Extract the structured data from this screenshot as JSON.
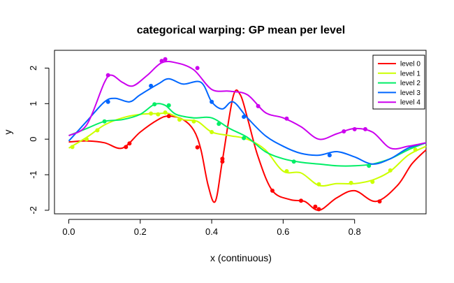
{
  "chart_data": {
    "type": "line",
    "title": "categorical warping: GP mean per level",
    "xlabel": "x (continuous)",
    "ylabel": "y",
    "xlim": [
      -0.04,
      1.0
    ],
    "ylim": [
      -2.1,
      2.5
    ],
    "x_ticks": [
      0.0,
      0.2,
      0.4,
      0.6,
      0.8
    ],
    "x_tick_labels": [
      "0.0",
      "0.2",
      "0.4",
      "0.6",
      "0.8"
    ],
    "y_ticks": [
      -2,
      -1,
      0,
      1,
      2
    ],
    "y_tick_labels": [
      "-2",
      "-1",
      "0",
      "1",
      "2"
    ],
    "grid": false,
    "legend_position": "top-right",
    "series": [
      {
        "name": "level 0",
        "color": "#ff0000",
        "curve": [
          [
            0.0,
            -0.08
          ],
          [
            0.05,
            -0.05
          ],
          [
            0.1,
            -0.1
          ],
          [
            0.15,
            -0.25
          ],
          [
            0.2,
            0.2
          ],
          [
            0.25,
            0.55
          ],
          [
            0.28,
            0.65
          ],
          [
            0.32,
            0.55
          ],
          [
            0.35,
            0.25
          ],
          [
            0.37,
            -0.3
          ],
          [
            0.39,
            -1.3
          ],
          [
            0.41,
            -1.75
          ],
          [
            0.43,
            -0.6
          ],
          [
            0.46,
            1.2
          ],
          [
            0.48,
            1.25
          ],
          [
            0.5,
            0.6
          ],
          [
            0.53,
            -0.5
          ],
          [
            0.57,
            -1.45
          ],
          [
            0.62,
            -1.7
          ],
          [
            0.66,
            -1.75
          ],
          [
            0.7,
            -2.0
          ],
          [
            0.75,
            -1.65
          ],
          [
            0.8,
            -1.45
          ],
          [
            0.86,
            -1.75
          ],
          [
            0.92,
            -1.3
          ],
          [
            0.96,
            -0.7
          ],
          [
            1.0,
            -0.3
          ]
        ],
        "points": [
          [
            0.16,
            -0.22
          ],
          [
            0.17,
            -0.12
          ],
          [
            0.28,
            0.65
          ],
          [
            0.36,
            -0.23
          ],
          [
            0.43,
            -0.55
          ],
          [
            0.43,
            -0.63
          ],
          [
            0.57,
            -1.45
          ],
          [
            0.65,
            -1.73
          ],
          [
            0.69,
            -1.9
          ],
          [
            0.7,
            -1.97
          ],
          [
            0.87,
            -1.75
          ]
        ]
      },
      {
        "name": "level 1",
        "color": "#ccff00",
        "curve": [
          [
            0.0,
            -0.25
          ],
          [
            0.05,
            0.05
          ],
          [
            0.1,
            0.4
          ],
          [
            0.15,
            0.6
          ],
          [
            0.2,
            0.7
          ],
          [
            0.25,
            0.72
          ],
          [
            0.28,
            0.72
          ],
          [
            0.32,
            0.55
          ],
          [
            0.36,
            0.5
          ],
          [
            0.4,
            0.2
          ],
          [
            0.45,
            0.1
          ],
          [
            0.5,
            0.0
          ],
          [
            0.55,
            -0.3
          ],
          [
            0.6,
            -0.9
          ],
          [
            0.65,
            -0.95
          ],
          [
            0.7,
            -1.3
          ],
          [
            0.75,
            -1.25
          ],
          [
            0.8,
            -1.25
          ],
          [
            0.85,
            -1.15
          ],
          [
            0.9,
            -0.9
          ],
          [
            0.95,
            -0.45
          ],
          [
            1.0,
            -0.2
          ]
        ],
        "points": [
          [
            0.01,
            -0.22
          ],
          [
            0.05,
            0.0
          ],
          [
            0.08,
            0.25
          ],
          [
            0.23,
            0.72
          ],
          [
            0.25,
            0.7
          ],
          [
            0.27,
            0.75
          ],
          [
            0.31,
            0.55
          ],
          [
            0.35,
            0.5
          ],
          [
            0.4,
            0.2
          ],
          [
            0.61,
            -0.9
          ],
          [
            0.7,
            -1.27
          ],
          [
            0.79,
            -1.23
          ],
          [
            0.85,
            -1.2
          ],
          [
            0.9,
            -0.88
          ],
          [
            0.97,
            -0.3
          ]
        ]
      },
      {
        "name": "level 2",
        "color": "#00ee66",
        "curve": [
          [
            0.0,
            0.1
          ],
          [
            0.05,
            0.3
          ],
          [
            0.1,
            0.5
          ],
          [
            0.15,
            0.55
          ],
          [
            0.2,
            0.7
          ],
          [
            0.24,
            0.98
          ],
          [
            0.27,
            0.95
          ],
          [
            0.3,
            0.7
          ],
          [
            0.35,
            0.6
          ],
          [
            0.4,
            0.6
          ],
          [
            0.45,
            0.3
          ],
          [
            0.5,
            0.05
          ],
          [
            0.55,
            -0.35
          ],
          [
            0.6,
            -0.55
          ],
          [
            0.65,
            -0.65
          ],
          [
            0.7,
            -0.7
          ],
          [
            0.75,
            -0.75
          ],
          [
            0.8,
            -0.75
          ],
          [
            0.85,
            -0.7
          ],
          [
            0.9,
            -0.55
          ],
          [
            0.95,
            -0.3
          ],
          [
            1.0,
            -0.1
          ]
        ],
        "points": [
          [
            0.1,
            0.5
          ],
          [
            0.24,
            0.98
          ],
          [
            0.28,
            0.95
          ],
          [
            0.42,
            0.43
          ],
          [
            0.49,
            0.03
          ],
          [
            0.63,
            -0.63
          ],
          [
            0.84,
            -0.75
          ]
        ]
      },
      {
        "name": "level 3",
        "color": "#0066ff",
        "curve": [
          [
            0.0,
            -0.05
          ],
          [
            0.05,
            0.5
          ],
          [
            0.1,
            1.05
          ],
          [
            0.13,
            1.15
          ],
          [
            0.17,
            1.05
          ],
          [
            0.2,
            1.25
          ],
          [
            0.25,
            1.55
          ],
          [
            0.28,
            1.7
          ],
          [
            0.32,
            1.55
          ],
          [
            0.37,
            1.6
          ],
          [
            0.4,
            1.05
          ],
          [
            0.43,
            0.85
          ],
          [
            0.46,
            1.05
          ],
          [
            0.5,
            0.6
          ],
          [
            0.55,
            0.1
          ],
          [
            0.6,
            -0.2
          ],
          [
            0.65,
            -0.4
          ],
          [
            0.7,
            -0.45
          ],
          [
            0.75,
            -0.35
          ],
          [
            0.8,
            -0.5
          ],
          [
            0.85,
            -0.7
          ],
          [
            0.9,
            -0.55
          ],
          [
            0.95,
            -0.25
          ],
          [
            1.0,
            -0.1
          ]
        ],
        "points": [
          [
            0.11,
            1.05
          ],
          [
            0.23,
            1.5
          ],
          [
            0.4,
            1.05
          ],
          [
            0.49,
            0.63
          ],
          [
            0.73,
            -0.45
          ]
        ]
      },
      {
        "name": "level 4",
        "color": "#cc00ee",
        "curve": [
          [
            0.0,
            0.1
          ],
          [
            0.05,
            0.4
          ],
          [
            0.1,
            1.6
          ],
          [
            0.12,
            1.8
          ],
          [
            0.15,
            1.6
          ],
          [
            0.18,
            1.5
          ],
          [
            0.22,
            1.8
          ],
          [
            0.26,
            2.15
          ],
          [
            0.3,
            2.15
          ],
          [
            0.35,
            1.95
          ],
          [
            0.4,
            1.4
          ],
          [
            0.45,
            1.35
          ],
          [
            0.5,
            1.25
          ],
          [
            0.55,
            0.75
          ],
          [
            0.6,
            0.6
          ],
          [
            0.65,
            0.35
          ],
          [
            0.7,
            0.0
          ],
          [
            0.75,
            0.15
          ],
          [
            0.8,
            0.3
          ],
          [
            0.85,
            0.2
          ],
          [
            0.9,
            -0.25
          ],
          [
            0.95,
            -0.2
          ],
          [
            1.0,
            -0.1
          ]
        ],
        "points": [
          [
            0.11,
            1.8
          ],
          [
            0.26,
            2.2
          ],
          [
            0.27,
            2.25
          ],
          [
            0.36,
            2.0
          ],
          [
            0.53,
            0.93
          ],
          [
            0.61,
            0.58
          ],
          [
            0.77,
            0.22
          ],
          [
            0.8,
            0.28
          ],
          [
            0.83,
            0.28
          ]
        ]
      }
    ]
  }
}
